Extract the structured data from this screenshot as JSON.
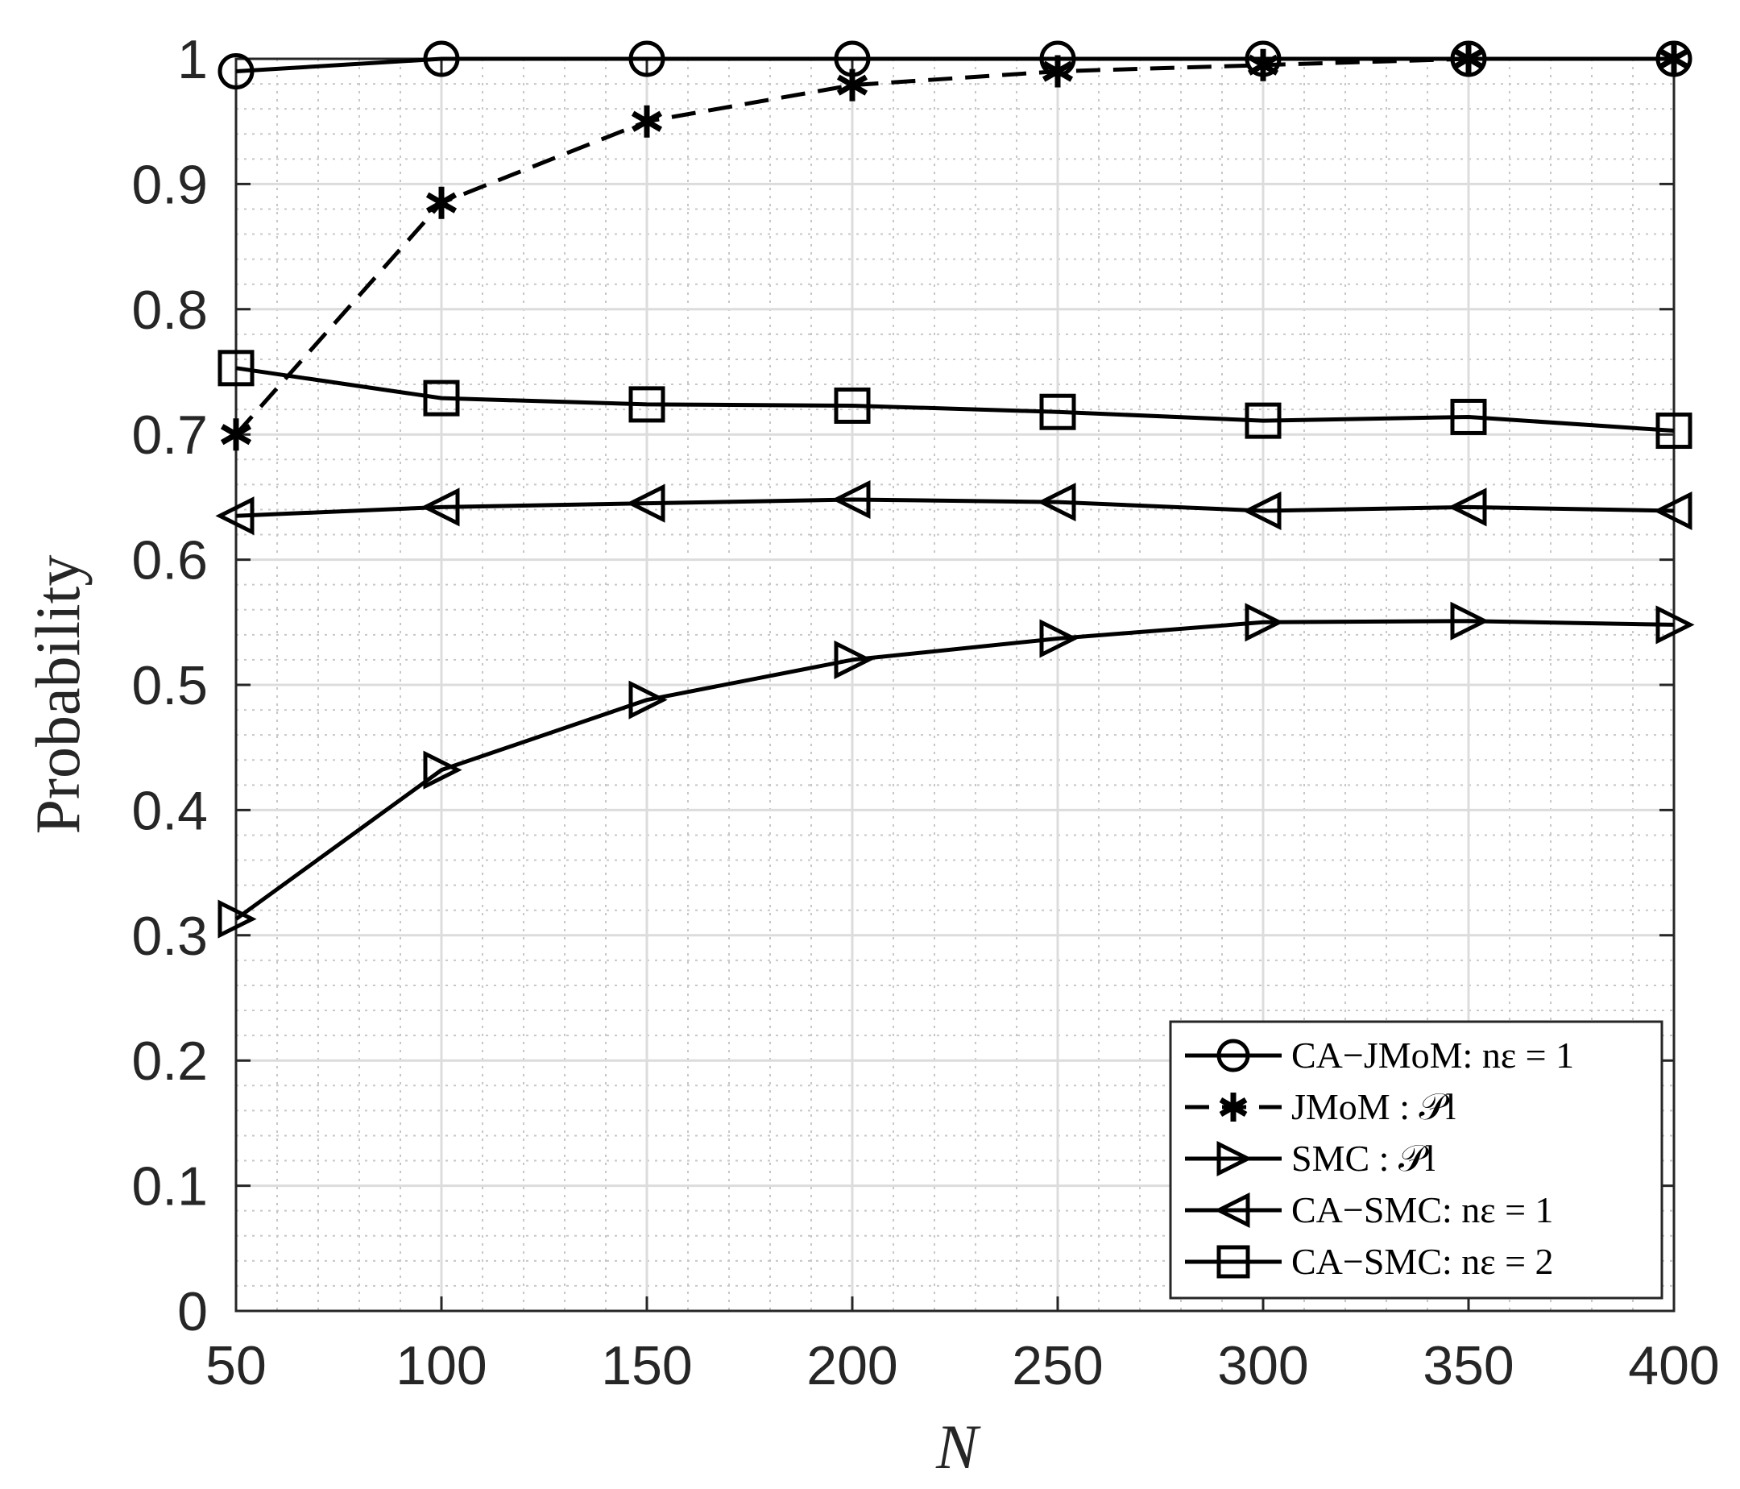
{
  "chart_data": {
    "type": "line",
    "xlabel": "N",
    "ylabel": "Probability",
    "xlim": [
      50,
      400
    ],
    "ylim": [
      0,
      1
    ],
    "x": [
      50,
      100,
      150,
      200,
      250,
      300,
      350,
      400
    ],
    "xticks": [
      50,
      100,
      150,
      200,
      250,
      300,
      350,
      400
    ],
    "yticks": [
      "0",
      "0.1",
      "0.2",
      "0.3",
      "0.4",
      "0.5",
      "0.6",
      "0.7",
      "0.8",
      "0.9",
      "1"
    ],
    "grid": true,
    "minor_grid": true,
    "legend_position": "bottom-right",
    "series": [
      {
        "name": "CA−JMoM: nε = 1",
        "marker": "circle",
        "line": "solid",
        "values": [
          0.99,
          1.0,
          1.0,
          1.0,
          1.0,
          1.0,
          1.0,
          1.0
        ]
      },
      {
        "name": "JMoM : 𝒫l",
        "marker": "asterisk",
        "line": "dashed",
        "values": [
          0.7,
          0.885,
          0.95,
          0.979,
          0.99,
          0.995,
          1.0,
          1.0
        ]
      },
      {
        "name": "SMC : 𝒫l",
        "marker": "triangle-right",
        "line": "solid",
        "values": [
          0.313,
          0.432,
          0.488,
          0.52,
          0.537,
          0.55,
          0.551,
          0.548
        ]
      },
      {
        "name": "CA−SMC: nε = 1",
        "marker": "triangle-left",
        "line": "solid",
        "values": [
          0.635,
          0.642,
          0.645,
          0.648,
          0.646,
          0.639,
          0.642,
          0.639
        ]
      },
      {
        "name": "CA−SMC: nε = 2",
        "marker": "square",
        "line": "solid",
        "values": [
          0.753,
          0.729,
          0.724,
          0.723,
          0.718,
          0.711,
          0.714,
          0.703
        ]
      }
    ]
  }
}
